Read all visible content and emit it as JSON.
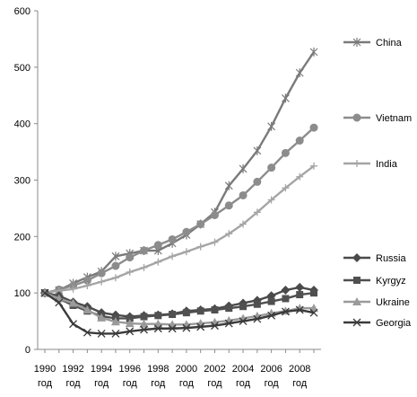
{
  "chart_data": {
    "type": "line",
    "title": "",
    "xlabel": "",
    "ylabel": "",
    "x": [
      1990,
      1991,
      1992,
      1993,
      1994,
      1995,
      1996,
      1997,
      1998,
      1999,
      2000,
      2001,
      2002,
      2003,
      2004,
      2005,
      2006,
      2007,
      2008,
      2009
    ],
    "xticks": [
      1990,
      1992,
      1994,
      1996,
      1998,
      2000,
      2002,
      2004,
      2006,
      2008
    ],
    "xtick_suffix": "год",
    "ylim": [
      0,
      600
    ],
    "yticks": [
      0,
      100,
      200,
      300,
      400,
      500,
      600
    ],
    "grid": false,
    "legend": "right",
    "series": [
      {
        "name": "China",
        "color": "#7a7a7a",
        "marker": "star",
        "values": [
          100,
          105,
          117,
          128,
          138,
          165,
          170,
          175,
          175,
          188,
          203,
          222,
          243,
          290,
          320,
          352,
          395,
          445,
          490,
          527
        ]
      },
      {
        "name": "Vietnam",
        "color": "#8c8c8c",
        "marker": "circle",
        "values": [
          100,
          106,
          113,
          122,
          135,
          148,
          163,
          175,
          185,
          195,
          208,
          222,
          238,
          255,
          273,
          297,
          322,
          348,
          370,
          393
        ]
      },
      {
        "name": "India",
        "color": "#a5a5a5",
        "marker": "plus",
        "values": [
          100,
          104,
          107,
          113,
          120,
          127,
          137,
          145,
          155,
          165,
          173,
          182,
          190,
          205,
          222,
          243,
          265,
          286,
          306,
          325
        ]
      },
      {
        "name": "Russia",
        "color": "#4a4a4a",
        "marker": "diamond",
        "values": [
          100,
          95,
          84,
          76,
          65,
          61,
          58,
          60,
          61,
          63,
          68,
          70,
          72,
          77,
          82,
          87,
          95,
          105,
          110,
          105
        ]
      },
      {
        "name": "Kyrgyz",
        "color": "#505050",
        "marker": "square",
        "values": [
          100,
          90,
          78,
          68,
          59,
          55,
          55,
          58,
          60,
          62,
          65,
          68,
          70,
          73,
          76,
          80,
          85,
          90,
          97,
          100
        ]
      },
      {
        "name": "Ukraine",
        "color": "#9a9a9a",
        "marker": "triangle",
        "values": [
          100,
          90,
          82,
          70,
          56,
          49,
          46,
          45,
          45,
          44,
          44,
          46,
          48,
          51,
          55,
          59,
          64,
          68,
          73,
          73
        ]
      },
      {
        "name": "Georgia",
        "color": "#3a3a3a",
        "marker": "x",
        "values": [
          100,
          83,
          45,
          30,
          28,
          28,
          32,
          35,
          37,
          37,
          38,
          40,
          42,
          46,
          50,
          54,
          60,
          67,
          70,
          65
        ]
      }
    ]
  }
}
